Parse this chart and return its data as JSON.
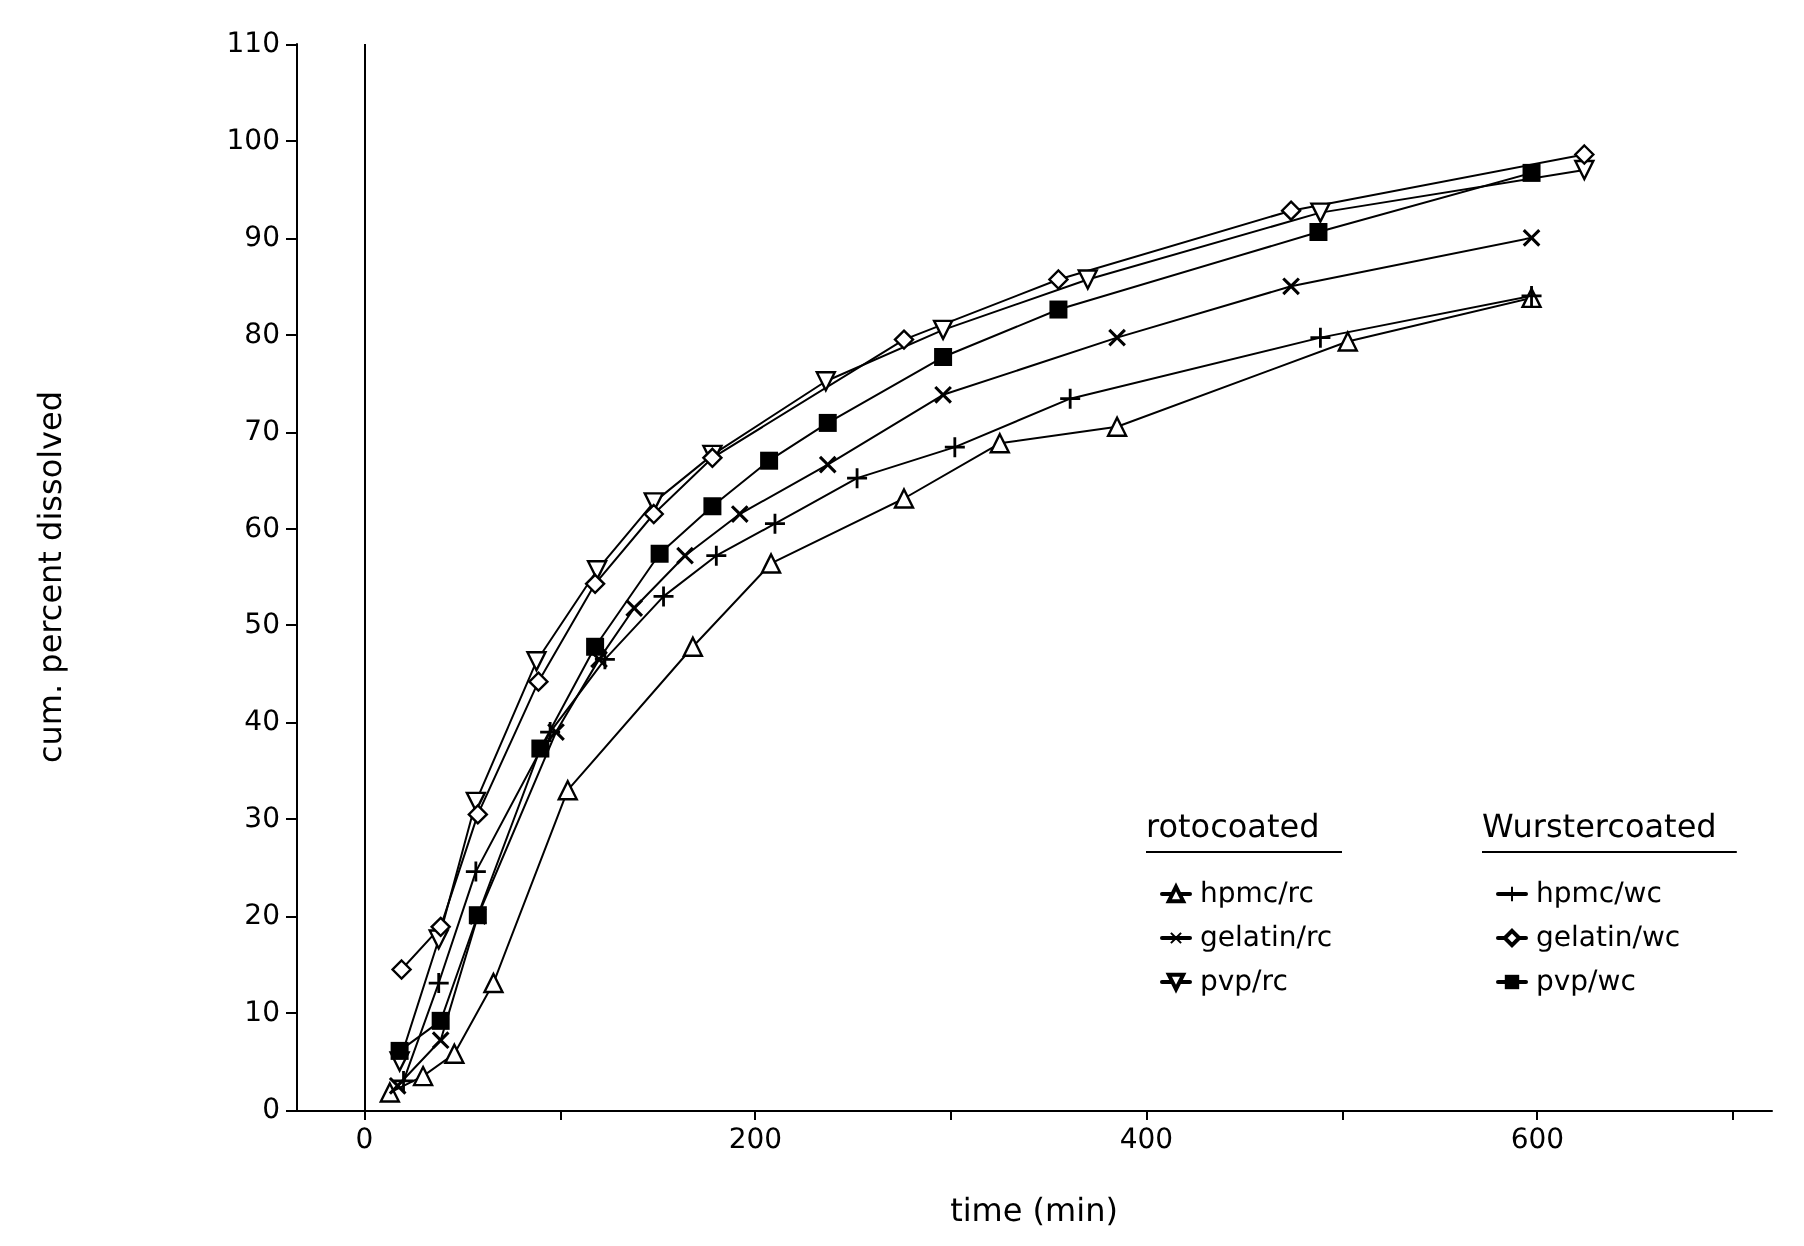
{
  "chart_data": {
    "type": "line",
    "xlabel": "time (min)",
    "ylabel": "cum. percent dissolved",
    "annotations": [
      "rotocoated",
      "Wurstercoated"
    ],
    "xlim": [
      -35,
      720
    ],
    "xticks": [
      0,
      {
        "value": 100,
        "label": null
      },
      200,
      {
        "value": 300,
        "label": null
      },
      400,
      {
        "value": 500,
        "label": null
      },
      600,
      {
        "value": 700,
        "label": null
      }
    ],
    "ylim": [
      0,
      110
    ],
    "yticks": [
      0,
      10,
      20,
      30,
      40,
      50,
      60,
      70,
      80,
      90,
      100,
      110
    ],
    "grid": false,
    "legend": "bottom right",
    "line_style": "solid",
    "ref_lines": [
      {
        "axis": "x",
        "value": 0,
        "label": null,
        "color": "#000000"
      }
    ],
    "series": [
      {
        "name": "hpmc/rc",
        "color": "#000000",
        "marker": "triangle",
        "x": [
          13,
          30,
          46,
          66,
          104,
          168,
          208,
          276,
          325,
          385,
          503,
          597
        ],
        "values": [
          1.8,
          3.5,
          5.8,
          13.1,
          33,
          47.8,
          56.4,
          63.1,
          68.8,
          70.5,
          79.3,
          83.8
        ]
      },
      {
        "name": "gelatin/rc",
        "color": "#000000",
        "marker": "cross",
        "x": [
          17,
          39,
          58,
          98,
          120,
          138,
          164,
          192,
          237,
          296,
          385,
          474,
          597
        ],
        "values": [
          2.5,
          7.2,
          20,
          39,
          46.5,
          51.8,
          57.2,
          61.5,
          66.6,
          73.8,
          79.7,
          85,
          90
        ]
      },
      {
        "name": "pvp/rc",
        "color": "#000000",
        "marker": "triangle-down",
        "x": [
          18,
          38,
          57,
          88,
          119,
          148,
          178,
          236,
          296,
          370,
          489,
          624
        ],
        "values": [
          5,
          17.6,
          31.8,
          46.3,
          55.7,
          62.7,
          67.6,
          75.2,
          80.5,
          85.7,
          92.6,
          97
        ]
      },
      {
        "name": "hpmc/wc",
        "color": "#000000",
        "marker": "plus",
        "x": [
          20,
          38,
          57,
          95,
          123,
          153,
          180,
          210,
          252,
          302,
          361,
          489,
          597
        ],
        "values": [
          3,
          13.1,
          24.6,
          39,
          46.5,
          53,
          57.2,
          60.5,
          65.2,
          68.4,
          73.4,
          79.7,
          84
        ]
      },
      {
        "name": "gelatin/wc",
        "color": "#000000",
        "marker": "diamond",
        "x": [
          19,
          39,
          58,
          89,
          118,
          148,
          178,
          276,
          355,
          474,
          624
        ],
        "values": [
          14.5,
          18.9,
          30.5,
          44.2,
          54.3,
          61.5,
          67.3,
          79.5,
          85.7,
          92.8,
          98.6
        ]
      },
      {
        "name": "pvp/wc",
        "color": "#000000",
        "marker": "square",
        "x": [
          18,
          39,
          58,
          90,
          118,
          151,
          178,
          207,
          237,
          296,
          355,
          488,
          597
        ],
        "values": [
          6.1,
          9.2,
          20.1,
          37.3,
          47.8,
          57.4,
          62.3,
          67,
          70.9,
          77.7,
          82.6,
          90.6,
          96.7
        ]
      }
    ]
  }
}
